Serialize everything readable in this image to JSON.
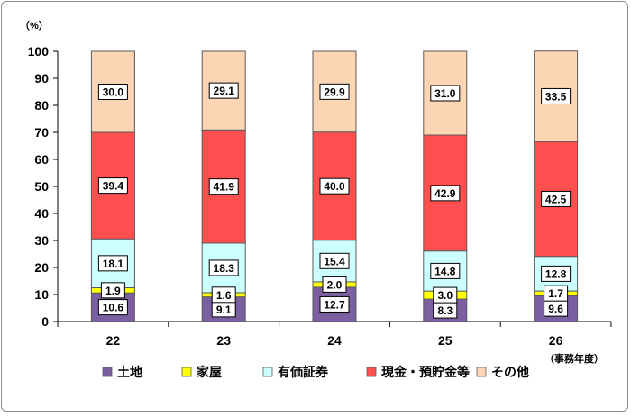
{
  "chart_data": {
    "type": "bar",
    "stacked": true,
    "unit_label": "（%）",
    "x_suffix_label": "（事務年度）",
    "categories": [
      "22",
      "23",
      "24",
      "25",
      "26"
    ],
    "ylim": [
      0,
      100
    ],
    "yticks": [
      0,
      10,
      20,
      30,
      40,
      50,
      60,
      70,
      80,
      90,
      100
    ],
    "grid": false,
    "legend_position": "bottom",
    "series": [
      {
        "name": "土地",
        "color": "#7b5fa0",
        "values": [
          10.6,
          9.1,
          12.7,
          8.3,
          9.6
        ],
        "labels": [
          "10.6",
          "9.1",
          "12.7",
          "8.3",
          "9.6"
        ]
      },
      {
        "name": "家屋",
        "color": "#ffff00",
        "values": [
          1.9,
          1.6,
          2.0,
          3.0,
          1.7
        ],
        "labels": [
          "1.9",
          "1.6",
          "2.0",
          "3.0",
          "1.7"
        ]
      },
      {
        "name": "有価証券",
        "color": "#ccffff",
        "values": [
          18.1,
          18.3,
          15.4,
          14.8,
          12.8
        ],
        "labels": [
          "18.1",
          "18.3",
          "15.4",
          "14.8",
          "12.8"
        ]
      },
      {
        "name": "現金・預貯金等",
        "color": "#ff4f4f",
        "values": [
          39.4,
          41.9,
          40.0,
          42.9,
          42.5
        ],
        "labels": [
          "39.4",
          "41.9",
          "40.0",
          "42.9",
          "42.5"
        ]
      },
      {
        "name": "その他",
        "color": "#fcd5b4",
        "values": [
          30.0,
          29.1,
          29.9,
          31.0,
          33.5
        ],
        "labels": [
          "30.0",
          "29.1",
          "29.9",
          "31.0",
          "33.5"
        ]
      }
    ]
  }
}
